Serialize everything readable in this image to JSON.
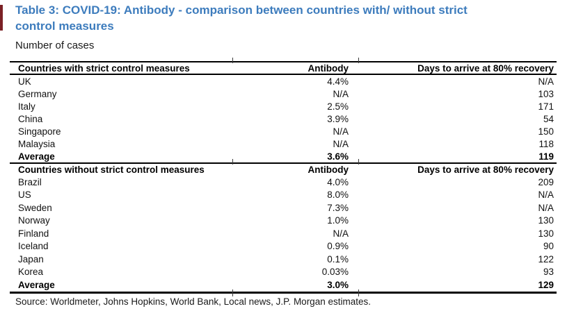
{
  "title": {
    "label": "Table 3: COVID-19: Antibody - comparison between countries with/ without strict control measures"
  },
  "subtitle": "Number of cases",
  "colors": {
    "title_blue": "#3d7cbd",
    "accent_bar_maroon": "#7b2125",
    "rule_black": "#000000"
  },
  "table": {
    "sections": [
      {
        "header": {
          "countries": "Countries with strict control measures",
          "antibody": "Antibody",
          "days": "Days to arrive at 80% recovery"
        },
        "rows": [
          {
            "country": "UK",
            "antibody": "4.4%",
            "days": "N/A"
          },
          {
            "country": "Germany",
            "antibody": "N/A",
            "days": "103"
          },
          {
            "country": "Italy",
            "antibody": "2.5%",
            "days": "171"
          },
          {
            "country": "China",
            "antibody": "3.9%",
            "days": "54"
          },
          {
            "country": "Singapore",
            "antibody": "N/A",
            "days": "150"
          },
          {
            "country": "Malaysia",
            "antibody": "N/A",
            "days": "118"
          }
        ],
        "average": {
          "country": "Average",
          "antibody": "3.6%",
          "days": "119"
        }
      },
      {
        "header": {
          "countries": "Countries without strict control measures",
          "antibody": "Antibody",
          "days": "Days to arrive at 80% recovery"
        },
        "rows": [
          {
            "country": "Brazil",
            "antibody": "4.0%",
            "days": "209"
          },
          {
            "country": "US",
            "antibody": "8.0%",
            "days": "N/A"
          },
          {
            "country": "Sweden",
            "antibody": "7.3%",
            "days": "N/A"
          },
          {
            "country": "Norway",
            "antibody": "1.0%",
            "days": "130"
          },
          {
            "country": "Finland",
            "antibody": "N/A",
            "days": "130"
          },
          {
            "country": "Iceland",
            "antibody": "0.9%",
            "days": "90"
          },
          {
            "country": "Japan",
            "antibody": "0.1%",
            "days": "122"
          },
          {
            "country": "Korea",
            "antibody": "0.03%",
            "days": "93"
          }
        ],
        "average": {
          "country": "Average",
          "antibody": "3.0%",
          "days": "129"
        }
      }
    ]
  },
  "source": "Source: Worldmeter, Johns Hopkins, World Bank, Local news, J.P. Morgan estimates."
}
